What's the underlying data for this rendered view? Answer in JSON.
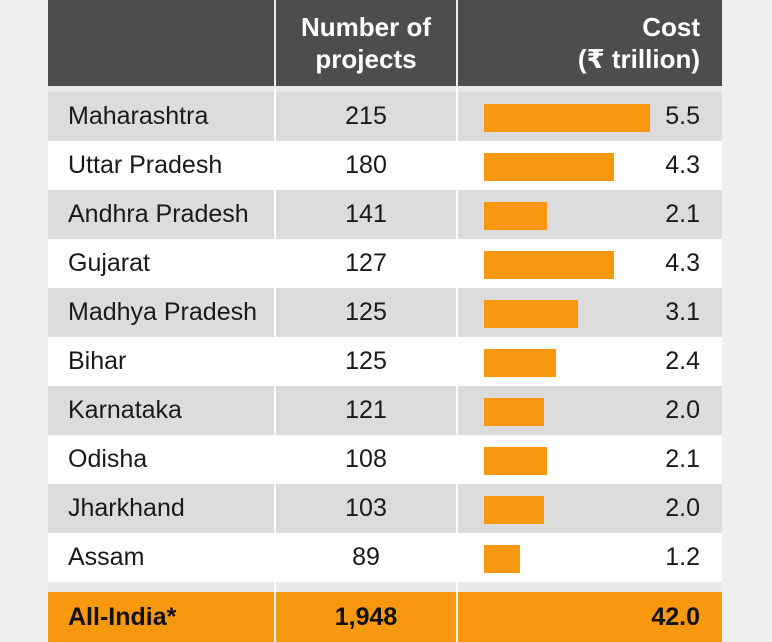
{
  "chart_data": {
    "type": "table",
    "columns": [
      "",
      "Number of projects",
      "Cost (₹ trillion)"
    ],
    "header": {
      "projects_line1": "Number of",
      "projects_line2": "projects",
      "cost_line1": "Cost",
      "cost_line2": "(₹ trillion)"
    },
    "rows": [
      {
        "state": "Maharashtra",
        "projects": "215",
        "cost": 5.5,
        "cost_label": "5.5"
      },
      {
        "state": "Uttar Pradesh",
        "projects": "180",
        "cost": 4.3,
        "cost_label": "4.3"
      },
      {
        "state": "Andhra Pradesh",
        "projects": "141",
        "cost": 2.1,
        "cost_label": "2.1"
      },
      {
        "state": "Gujarat",
        "projects": "127",
        "cost": 4.3,
        "cost_label": "4.3"
      },
      {
        "state": "Madhya Pradesh",
        "projects": "125",
        "cost": 3.1,
        "cost_label": "3.1"
      },
      {
        "state": "Bihar",
        "projects": "125",
        "cost": 2.4,
        "cost_label": "2.4"
      },
      {
        "state": "Karnataka",
        "projects": "121",
        "cost": 2.0,
        "cost_label": "2.0"
      },
      {
        "state": "Odisha",
        "projects": "108",
        "cost": 2.1,
        "cost_label": "2.1"
      },
      {
        "state": "Jharkhand",
        "projects": "103",
        "cost": 2.0,
        "cost_label": "2.0"
      },
      {
        "state": "Assam",
        "projects": "89",
        "cost": 1.2,
        "cost_label": "1.2"
      }
    ],
    "total": {
      "state": "All-India*",
      "projects": "1,948",
      "cost": "42.0"
    },
    "colors": {
      "bar": "#f7980e",
      "header": "#4d4d4d",
      "stripe": "#dcdcdc"
    }
  }
}
